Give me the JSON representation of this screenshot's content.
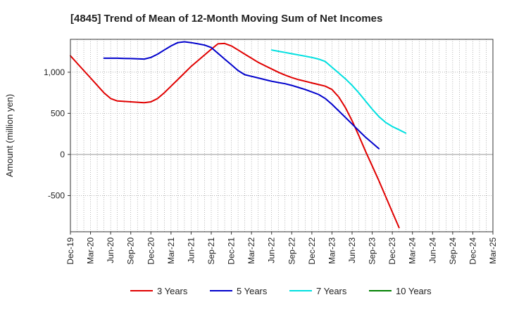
{
  "chart_data": {
    "type": "line",
    "title": "[4845]  Trend of Mean of 12-Month Moving Sum of Net Incomes",
    "ylabel": "Amount (million yen)",
    "xlabel": "",
    "ylim": [
      -940,
      1400
    ],
    "y_ticks": [
      1000,
      500,
      0,
      -500
    ],
    "y_tick_labels": [
      "1,000",
      "500",
      "0",
      "-500"
    ],
    "x_tick_labels": [
      "Dec-19",
      "Mar-20",
      "Jun-20",
      "Sep-20",
      "Dec-20",
      "Mar-21",
      "Jun-21",
      "Sep-21",
      "Dec-21",
      "Mar-22",
      "Jun-22",
      "Sep-22",
      "Dec-22",
      "Mar-23",
      "Jun-23",
      "Sep-23",
      "Dec-23",
      "Mar-24",
      "Jun-24",
      "Sep-24",
      "Dec-24",
      "Mar-25"
    ],
    "grid": "on",
    "legend_position": "bottom",
    "series": [
      {
        "name": "3 Years",
        "color": "#e00000",
        "start_index": 0,
        "values": [
          1200,
          1110,
          1020,
          930,
          840,
          750,
          680,
          650,
          645,
          640,
          635,
          630,
          640,
          680,
          750,
          830,
          910,
          990,
          1070,
          1140,
          1210,
          1280,
          1345,
          1350,
          1320,
          1270,
          1220,
          1170,
          1120,
          1080,
          1040,
          1000,
          965,
          935,
          910,
          890,
          870,
          850,
          830,
          790,
          700,
          570,
          410,
          230,
          40,
          -140,
          -320,
          -510,
          -700,
          -890
        ]
      },
      {
        "name": "5 Years",
        "color": "#0000cc",
        "start_index": 5,
        "values": [
          1170,
          1170,
          1170,
          1168,
          1166,
          1163,
          1160,
          1180,
          1220,
          1270,
          1320,
          1360,
          1370,
          1360,
          1345,
          1330,
          1300,
          1230,
          1160,
          1090,
          1020,
          970,
          950,
          930,
          910,
          890,
          875,
          860,
          840,
          815,
          790,
          760,
          730,
          680,
          610,
          530,
          450,
          370,
          290,
          210,
          140,
          70
        ]
      },
      {
        "name": "7 Years",
        "color": "#00e0e0",
        "start_index": 30,
        "values": [
          1270,
          1255,
          1240,
          1225,
          1210,
          1195,
          1180,
          1160,
          1130,
          1060,
          990,
          920,
          840,
          750,
          650,
          550,
          460,
          390,
          340,
          300,
          260
        ]
      },
      {
        "name": "10 Years",
        "color": "#008000",
        "start_index": 0,
        "values": []
      }
    ]
  }
}
